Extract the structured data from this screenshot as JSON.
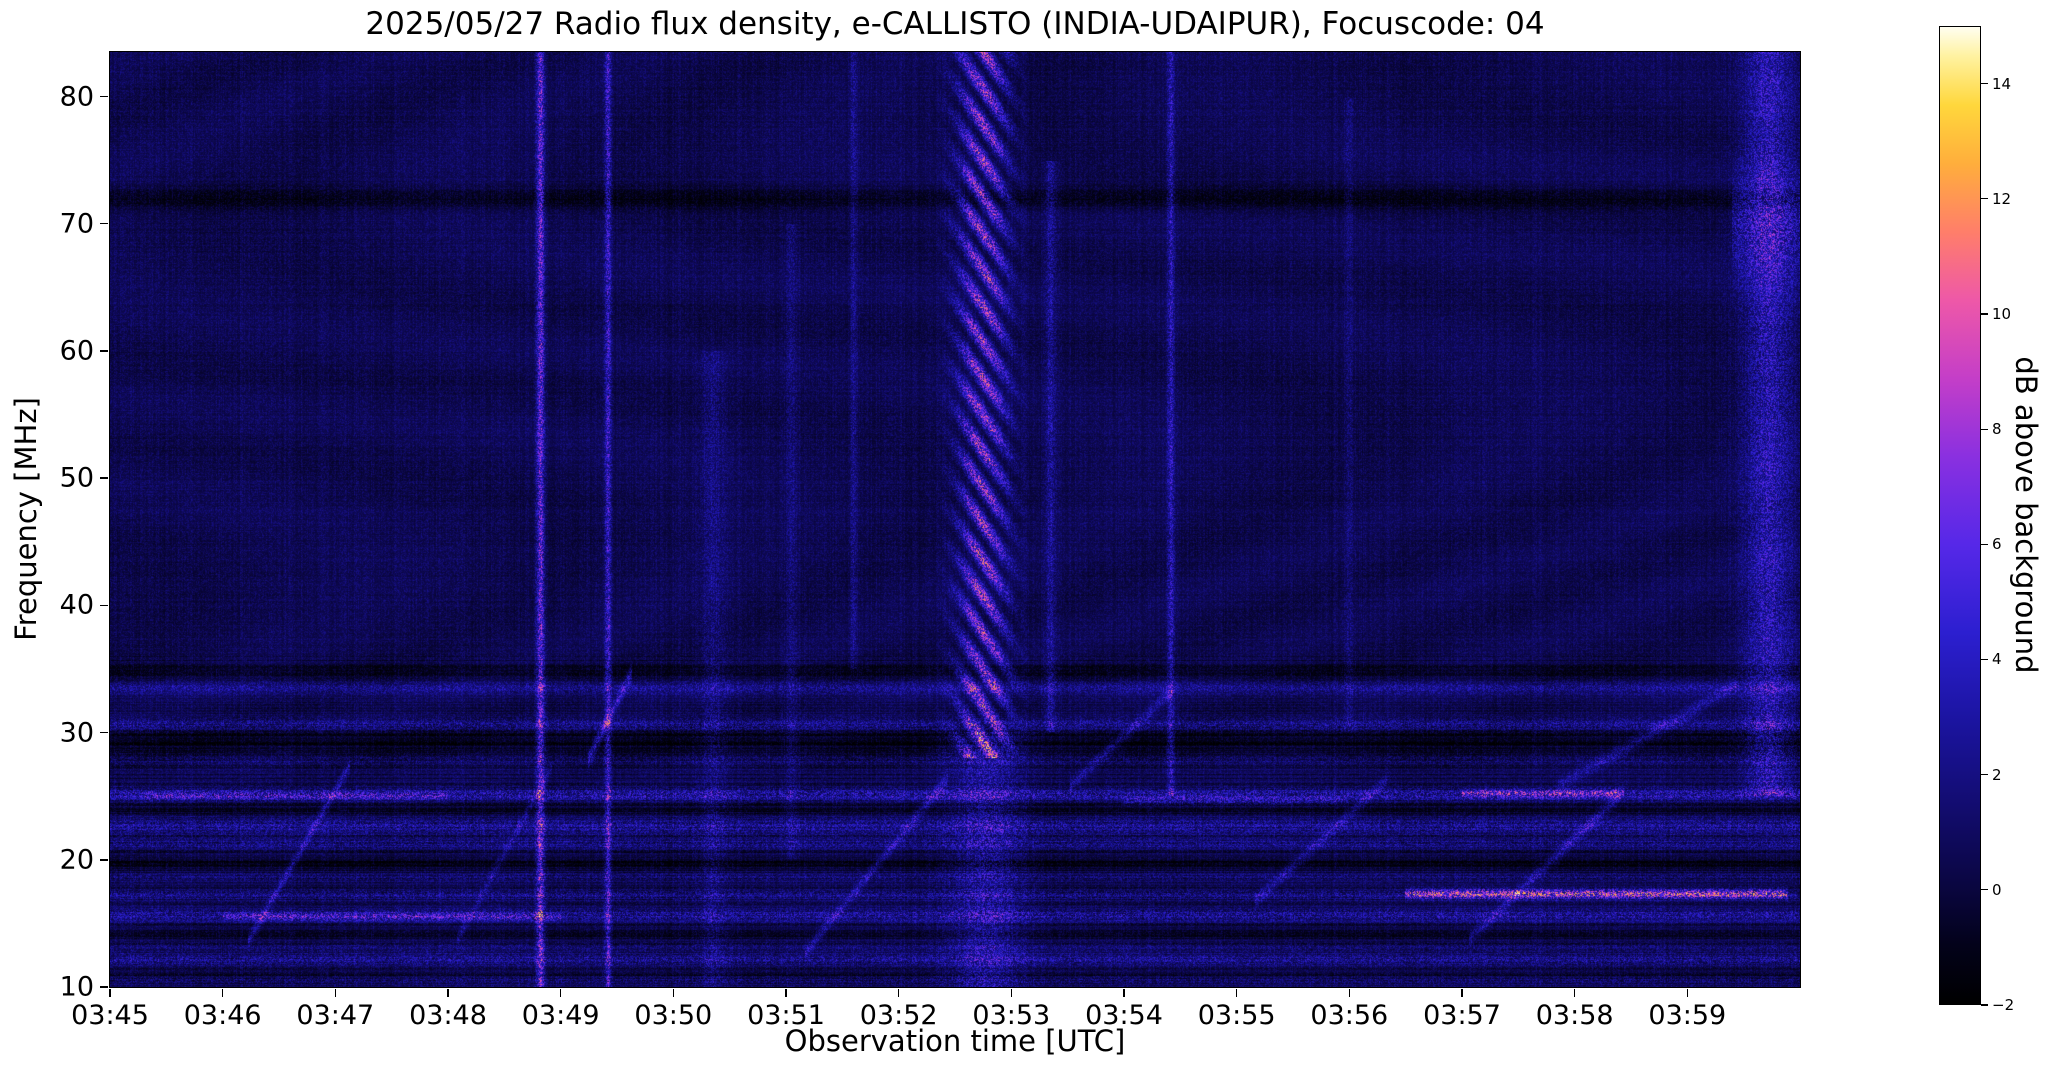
{
  "figure": {
    "background": "#ffffff"
  },
  "chart_data": {
    "type": "heatmap",
    "title": "2025/05/27  Radio flux density, e-CALLISTO (INDIA-UDAIPUR), Focuscode: 04",
    "date": "2025/05/27",
    "instrument": "e-CALLISTO",
    "station": "INDIA-UDAIPUR",
    "focuscode": "04",
    "xlabel": "Observation time [UTC]",
    "ylabel": "Frequency [MHz]",
    "x_ticks": [
      "03:45",
      "03:46",
      "03:47",
      "03:48",
      "03:49",
      "03:50",
      "03:51",
      "03:52",
      "03:53",
      "03:54",
      "03:55",
      "03:56",
      "03:57",
      "03:58",
      "03:59"
    ],
    "x_range_minutes": [
      0,
      15
    ],
    "x_start_time": "03:45",
    "y_ticks": [
      80,
      70,
      60,
      50,
      40,
      30,
      20,
      10
    ],
    "y_range_mhz": [
      10,
      83.5
    ],
    "grid": false,
    "colorbar": {
      "label": "dB above background",
      "ticks": [
        14,
        12,
        10,
        8,
        6,
        4,
        2,
        0,
        -2
      ],
      "range": [
        -2,
        15
      ],
      "colormap_stops": [
        {
          "t": 0.0,
          "color": "#000000"
        },
        {
          "t": 0.06,
          "color": "#03021a"
        },
        {
          "t": 0.12,
          "color": "#0a0640"
        },
        {
          "t": 0.2,
          "color": "#120c6e"
        },
        {
          "t": 0.29,
          "color": "#1b14a0"
        },
        {
          "t": 0.38,
          "color": "#2c1fd0"
        },
        {
          "t": 0.47,
          "color": "#5628e8"
        },
        {
          "t": 0.56,
          "color": "#8a30e0"
        },
        {
          "t": 0.64,
          "color": "#c43ec8"
        },
        {
          "t": 0.72,
          "color": "#ee58a8"
        },
        {
          "t": 0.79,
          "color": "#ff7e6a"
        },
        {
          "t": 0.86,
          "color": "#ffae3c"
        },
        {
          "t": 0.92,
          "color": "#ffd73c"
        },
        {
          "t": 0.97,
          "color": "#fff2a0"
        },
        {
          "t": 1.0,
          "color": "#fffef0"
        }
      ]
    },
    "noise": {
      "seed": 1337,
      "base_db": 0.3,
      "speckle_db": 1.7
    },
    "features": {
      "vertical_lines": [
        {
          "t": 3.82,
          "w": 0.035,
          "i": 4.5,
          "f0": 10,
          "f1": 83.5,
          "zebra": 0
        },
        {
          "t": 4.42,
          "w": 0.03,
          "i": 3.2,
          "f0": 10,
          "f1": 83.5,
          "zebra": 0
        },
        {
          "t": 5.35,
          "w": 0.12,
          "i": 1.1,
          "f0": 10,
          "f1": 60,
          "zebra": 0
        },
        {
          "t": 6.05,
          "w": 0.05,
          "i": 1.0,
          "f0": 20,
          "f1": 70,
          "zebra": 0
        },
        {
          "t": 6.6,
          "w": 0.03,
          "i": 1.4,
          "f0": 35,
          "f1": 83.5,
          "zebra": 0
        },
        {
          "t": 7.75,
          "w": 0.22,
          "i": 5.5,
          "f0": 28,
          "f1": 83.5,
          "zebra": 1
        },
        {
          "t": 7.78,
          "w": 0.3,
          "i": 2.0,
          "f0": 10,
          "f1": 30,
          "zebra": 0
        },
        {
          "t": 8.35,
          "w": 0.05,
          "i": 1.8,
          "f0": 30,
          "f1": 75,
          "zebra": 0
        },
        {
          "t": 9.42,
          "w": 0.035,
          "i": 2.5,
          "f0": 25,
          "f1": 83.5,
          "zebra": 0
        },
        {
          "t": 11.0,
          "w": 0.04,
          "i": 1.0,
          "f0": 30,
          "f1": 80,
          "zebra": 0
        },
        {
          "t": 14.72,
          "w": 0.22,
          "i": 2.6,
          "f0": 25,
          "f1": 83.5,
          "zebra": 0
        }
      ],
      "horizontal_bands": [
        {
          "f": 72.0,
          "fw": 0.8,
          "i": -1.6,
          "speckle": 0
        },
        {
          "f": 34.8,
          "fw": 0.7,
          "i": -1.4,
          "speckle": 0
        },
        {
          "f": 33.5,
          "fw": 0.5,
          "i": 1.2,
          "speckle": 1
        },
        {
          "f": 30.6,
          "fw": 0.5,
          "i": 1.5,
          "speckle": 1
        },
        {
          "f": 29.3,
          "fw": 0.9,
          "i": -1.5,
          "speckle": 0
        },
        {
          "f": 27.8,
          "fw": 0.4,
          "i": 0.8,
          "speckle": 1
        },
        {
          "f": 25.1,
          "fw": 0.5,
          "i": 2.2,
          "speckle": 1
        },
        {
          "f": 23.9,
          "fw": 0.4,
          "i": -1.2,
          "speckle": 0
        },
        {
          "f": 22.6,
          "fw": 0.7,
          "i": 1.6,
          "speckle": 1
        },
        {
          "f": 21.2,
          "fw": 0.4,
          "i": 1.2,
          "speckle": 1
        },
        {
          "f": 19.8,
          "fw": 0.6,
          "i": -1.3,
          "speckle": 0
        },
        {
          "f": 18.6,
          "fw": 0.3,
          "i": 0.9,
          "speckle": 1
        },
        {
          "f": 17.2,
          "fw": 0.4,
          "i": 1.4,
          "speckle": 1
        },
        {
          "f": 15.6,
          "fw": 0.5,
          "i": 1.8,
          "speckle": 1
        },
        {
          "f": 14.2,
          "fw": 0.5,
          "i": -1.2,
          "speckle": 0
        },
        {
          "f": 13.1,
          "fw": 0.3,
          "i": 0.8,
          "speckle": 1
        },
        {
          "f": 12.1,
          "fw": 0.5,
          "i": 1.5,
          "speckle": 1
        },
        {
          "f": 11.0,
          "fw": 0.4,
          "i": -1.0,
          "speckle": 0
        },
        {
          "f": 10.5,
          "fw": 0.3,
          "i": 1.0,
          "speckle": 1
        }
      ],
      "segments": [
        {
          "f": 17.3,
          "fw": 0.35,
          "t0": 11.5,
          "t1": 14.9,
          "i": 5.0
        },
        {
          "f": 25.2,
          "fw": 0.3,
          "t0": 12.0,
          "t1": 13.4,
          "i": 3.0
        },
        {
          "f": 24.6,
          "fw": 0.3,
          "t0": 9.0,
          "t1": 11.0,
          "i": 1.5
        },
        {
          "f": 15.5,
          "fw": 0.3,
          "t0": 1.0,
          "t1": 4.0,
          "i": 2.0
        },
        {
          "f": 25.0,
          "fw": 0.3,
          "t0": 0.3,
          "t1": 3.0,
          "i": 1.5
        },
        {
          "f": 70.0,
          "fw": 4.0,
          "t0": 14.4,
          "t1": 15.0,
          "i": 1.5
        }
      ],
      "diagonals": [
        {
          "t0": 1.25,
          "f0": 14,
          "t1": 2.1,
          "f1": 27,
          "i": 2.2,
          "fw": 0.5
        },
        {
          "t0": 3.1,
          "f0": 14,
          "t1": 3.9,
          "f1": 27,
          "i": 1.5,
          "fw": 0.5
        },
        {
          "t0": 4.25,
          "f0": 28,
          "t1": 4.62,
          "f1": 34.5,
          "i": 3.0,
          "fw": 0.6
        },
        {
          "t0": 6.2,
          "f0": 13,
          "t1": 7.4,
          "f1": 26,
          "i": 2.0,
          "fw": 0.5
        },
        {
          "t0": 8.55,
          "f0": 26,
          "t1": 9.4,
          "f1": 33,
          "i": 1.8,
          "fw": 0.5
        },
        {
          "t0": 10.2,
          "f0": 17,
          "t1": 11.3,
          "f1": 26,
          "i": 1.8,
          "fw": 0.5
        },
        {
          "t0": 12.1,
          "f0": 14,
          "t1": 13.4,
          "f1": 25,
          "i": 2.0,
          "fw": 0.5
        },
        {
          "t0": 12.9,
          "f0": 26,
          "t1": 14.4,
          "f1": 33.5,
          "i": 1.8,
          "fw": 0.5
        }
      ]
    }
  }
}
